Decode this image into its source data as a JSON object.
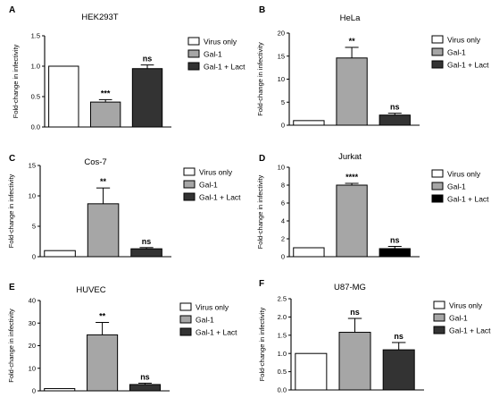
{
  "chart_data": [
    {
      "type": "bar",
      "panel_label": "A",
      "title": "HEK293T",
      "ylabel": "Fold-change in infectivity",
      "xlabel": "",
      "ylim": [
        0,
        1.5
      ],
      "yticks": [
        0.0,
        0.5,
        1.0,
        1.5
      ],
      "ytick_labels": [
        "0.0",
        "0.5",
        "1.0",
        "1.5"
      ],
      "grid": false,
      "legend_position": "right",
      "categories": [
        "Virus only",
        "Gal-1",
        "Gal-1 + Lact"
      ],
      "values": [
        1.0,
        0.41,
        0.96
      ],
      "errors": [
        0,
        0.04,
        0.06
      ],
      "significance": [
        "",
        "***",
        "ns"
      ],
      "colors": [
        "#ffffff",
        "#a6a6a6",
        "#333333"
      ]
    },
    {
      "type": "bar",
      "panel_label": "B",
      "title": "HeLa",
      "ylabel": "Fold-change in infectivity",
      "xlabel": "",
      "ylim": [
        0,
        20
      ],
      "yticks": [
        0,
        5,
        10,
        15,
        20
      ],
      "ytick_labels": [
        "0",
        "5",
        "10",
        "15",
        "20"
      ],
      "grid": false,
      "legend_position": "right",
      "categories": [
        "Virus only",
        "Gal-1",
        "Gal-1 + Lact"
      ],
      "values": [
        1.0,
        14.6,
        2.2
      ],
      "errors": [
        0,
        2.3,
        0.4
      ],
      "significance": [
        "",
        "**",
        "ns"
      ],
      "colors": [
        "#ffffff",
        "#a6a6a6",
        "#333333"
      ]
    },
    {
      "type": "bar",
      "panel_label": "C",
      "title": "Cos-7",
      "ylabel": "Fold-change in infectivity",
      "xlabel": "",
      "ylim": [
        0,
        15
      ],
      "yticks": [
        0,
        5,
        10,
        15
      ],
      "ytick_labels": [
        "0",
        "5",
        "10",
        "15"
      ],
      "grid": false,
      "legend_position": "right",
      "categories": [
        "Virus only",
        "Gal-1",
        "Gal-1 + Lact"
      ],
      "values": [
        1.0,
        8.7,
        1.3
      ],
      "errors": [
        0,
        2.6,
        0.2
      ],
      "significance": [
        "",
        "**",
        "ns"
      ],
      "colors": [
        "#ffffff",
        "#a6a6a6",
        "#333333"
      ]
    },
    {
      "type": "bar",
      "panel_label": "D",
      "title": "Jurkat",
      "ylabel": "Fold-change in infectivity",
      "xlabel": "",
      "ylim": [
        0,
        10
      ],
      "yticks": [
        0,
        2,
        4,
        6,
        8,
        10
      ],
      "ytick_labels": [
        "0",
        "2",
        "4",
        "6",
        "8",
        "10"
      ],
      "grid": false,
      "legend_position": "right",
      "categories": [
        "Virus only",
        "Gal-1",
        "Gal-1 + Lact"
      ],
      "values": [
        1.0,
        8.0,
        0.9
      ],
      "errors": [
        0,
        0.2,
        0.25
      ],
      "significance": [
        "",
        "****",
        "ns"
      ],
      "colors": [
        "#ffffff",
        "#a6a6a6",
        "#000000"
      ]
    },
    {
      "type": "bar",
      "panel_label": "E",
      "title": "HUVEC",
      "ylabel": "Fold-change in infectivity",
      "xlabel": "",
      "ylim": [
        0,
        40
      ],
      "yticks": [
        0,
        10,
        20,
        30,
        40
      ],
      "ytick_labels": [
        "0",
        "10",
        "20",
        "30",
        "40"
      ],
      "grid": false,
      "legend_position": "right",
      "categories": [
        "Virus only",
        "Gal-1",
        "Gal-1 + Lact"
      ],
      "values": [
        1.0,
        24.8,
        2.8
      ],
      "errors": [
        0,
        5.5,
        0.6
      ],
      "significance": [
        "",
        "**",
        "ns"
      ],
      "colors": [
        "#ffffff",
        "#a6a6a6",
        "#333333"
      ]
    },
    {
      "type": "bar",
      "panel_label": "F",
      "title": "U87-MG",
      "ylabel": "Fold-change in infectivity",
      "xlabel": "",
      "ylim": [
        0,
        2.5
      ],
      "yticks": [
        0.0,
        0.5,
        1.0,
        1.5,
        2.0,
        2.5
      ],
      "ytick_labels": [
        "0.0",
        "0.5",
        "1.0",
        "1.5",
        "2.0",
        "2.5"
      ],
      "grid": false,
      "legend_position": "right",
      "categories": [
        "Virus only",
        "Gal-1",
        "Gal-1 + Lact"
      ],
      "values": [
        1.0,
        1.58,
        1.1
      ],
      "errors": [
        0,
        0.38,
        0.2
      ],
      "significance": [
        "",
        "ns",
        "ns"
      ],
      "colors": [
        "#ffffff",
        "#a6a6a6",
        "#333333"
      ]
    }
  ]
}
